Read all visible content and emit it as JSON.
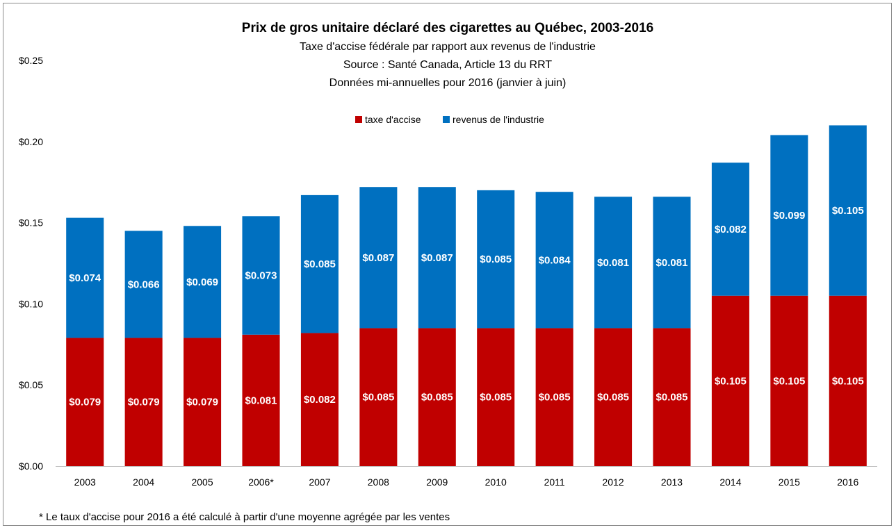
{
  "chart_data": {
    "type": "bar",
    "stacked": true,
    "title": "Prix de gros unitaire déclaré des cigarettes au Québec, 2003-2016",
    "subtitles": [
      "Taxe d'accise fédérale par rapport aux revenus de l'industrie",
      "Source : Santé Canada, Article 13 du RRT",
      "Données mi-annuelles pour 2016 (janvier à juin)"
    ],
    "categories": [
      "2003",
      "2004",
      "2005",
      "2006*",
      "2007",
      "2008",
      "2009",
      "2010",
      "2011",
      "2012",
      "2013",
      "2014",
      "2015",
      "2016"
    ],
    "series": [
      {
        "name": "taxe d'accise",
        "color": "#c00000",
        "values": [
          0.079,
          0.079,
          0.079,
          0.081,
          0.082,
          0.085,
          0.085,
          0.085,
          0.085,
          0.085,
          0.085,
          0.105,
          0.105,
          0.105
        ],
        "labels": [
          "$0.079",
          "$0.079",
          "$0.079",
          "$0.081",
          "$0.082",
          "$0.085",
          "$0.085",
          "$0.085",
          "$0.085",
          "$0.085",
          "$0.085",
          "$0.105",
          "$0.105",
          "$0.105"
        ]
      },
      {
        "name": "revenus de l'industrie",
        "color": "#0070c0",
        "values": [
          0.074,
          0.066,
          0.069,
          0.073,
          0.085,
          0.087,
          0.087,
          0.085,
          0.084,
          0.081,
          0.081,
          0.082,
          0.099,
          0.105
        ],
        "labels": [
          "$0.074",
          "$0.066",
          "$0.069",
          "$0.073",
          "$0.085",
          "$0.087",
          "$0.087",
          "$0.085",
          "$0.084",
          "$0.081",
          "$0.081",
          "$0.082",
          "$0.099",
          "$0.105"
        ]
      }
    ],
    "y_ticks": [
      0,
      0.05,
      0.1,
      0.15,
      0.2,
      0.25
    ],
    "y_tick_labels": [
      "$0.00",
      "$0.05",
      "$0.10",
      "$0.15",
      "$0.20",
      "$0.25"
    ],
    "ylim": [
      0,
      0.25
    ],
    "grid": false,
    "legend_position": "top-center",
    "footnote": "* Le taux d'accise pour 2016 a été  calculé à partir d'une moyenne agrégée par les ventes"
  }
}
